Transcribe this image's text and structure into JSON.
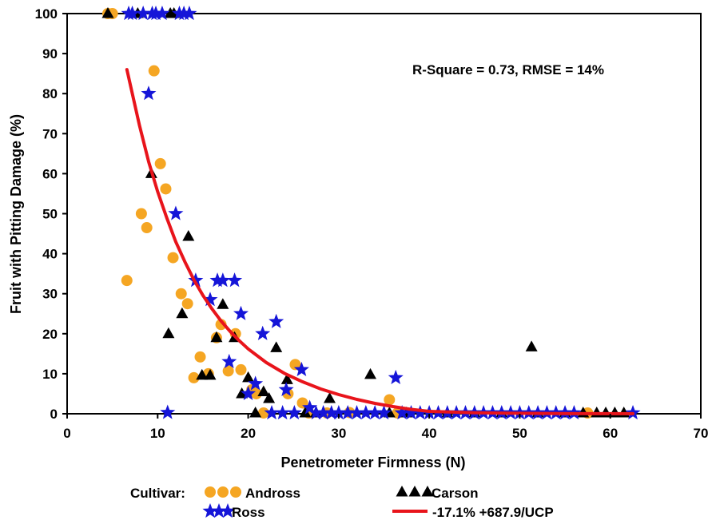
{
  "chart_data": {
    "type": "scatter",
    "xlabel": "Penetrometer Firmness (N)",
    "ylabel": "Fruit with Pitting Damage (%)",
    "xlim": [
      0,
      70
    ],
    "ylim": [
      0,
      100
    ],
    "xticks": [
      0,
      10,
      20,
      30,
      40,
      50,
      60,
      70
    ],
    "yticks": [
      0,
      10,
      20,
      30,
      40,
      50,
      60,
      70,
      80,
      90,
      100
    ],
    "grid": false,
    "annotation": "R-Square = 0.73, RMSE = 14%",
    "legend": {
      "title": "Cultivar:",
      "placement": "bottom",
      "entries": [
        {
          "label": "Andross",
          "glyph": "circle"
        },
        {
          "label": "Carson",
          "glyph": "triangle"
        },
        {
          "label": "Ross",
          "glyph": "star"
        },
        {
          "label": "-17.1% +687.9/UCP",
          "glyph": "line"
        }
      ]
    },
    "series": [
      {
        "name": "Andross",
        "marker": "circle",
        "color": "#F5A623",
        "points": [
          [
            4.5,
            100
          ],
          [
            5.0,
            100
          ],
          [
            6.6,
            33.3
          ],
          [
            8.2,
            50
          ],
          [
            8.8,
            46.5
          ],
          [
            9.6,
            85.7
          ],
          [
            10.3,
            62.5
          ],
          [
            10.9,
            56.2
          ],
          [
            11.7,
            39
          ],
          [
            12.6,
            30
          ],
          [
            13.3,
            27.5
          ],
          [
            14.0,
            9
          ],
          [
            14.7,
            14.2
          ],
          [
            15.6,
            10
          ],
          [
            16.5,
            19
          ],
          [
            17.0,
            22.3
          ],
          [
            17.8,
            10.7
          ],
          [
            18.6,
            20
          ],
          [
            19.2,
            11
          ],
          [
            20.4,
            6
          ],
          [
            20.9,
            5
          ],
          [
            21.7,
            0.2
          ],
          [
            24.4,
            5
          ],
          [
            25.2,
            12.3
          ],
          [
            26.0,
            2.7
          ],
          [
            26.7,
            0.2
          ],
          [
            28.7,
            0.2
          ],
          [
            31.2,
            0.3
          ],
          [
            35.6,
            3.5
          ],
          [
            36.5,
            0.2
          ],
          [
            57.5,
            0.2
          ]
        ]
      },
      {
        "name": "Carson",
        "marker": "triangle",
        "color": "#000000",
        "points": [
          [
            4.5,
            100
          ],
          [
            7.8,
            100
          ],
          [
            9.3,
            60
          ],
          [
            11.4,
            100
          ],
          [
            11.8,
            100
          ],
          [
            11.2,
            20
          ],
          [
            12.7,
            25
          ],
          [
            13.4,
            44.3
          ],
          [
            14.9,
            9.6
          ],
          [
            15.8,
            9.6
          ],
          [
            16.5,
            19
          ],
          [
            17.2,
            27.3
          ],
          [
            18.5,
            19
          ],
          [
            19.3,
            5
          ],
          [
            20.0,
            9
          ],
          [
            20.8,
            0.2
          ],
          [
            21.7,
            5.5
          ],
          [
            22.3,
            3.8
          ],
          [
            23.1,
            16.5
          ],
          [
            24.3,
            8.5
          ],
          [
            26.3,
            0.2
          ],
          [
            27.5,
            0.2
          ],
          [
            29.0,
            3.8
          ],
          [
            33.5,
            9.8
          ],
          [
            35.6,
            0.2
          ],
          [
            37.5,
            0.2
          ],
          [
            42,
            0.2
          ],
          [
            45,
            0.2
          ],
          [
            48,
            0.2
          ],
          [
            51.3,
            16.7
          ],
          [
            52,
            0.2
          ],
          [
            55,
            0.2
          ],
          [
            57,
            0.2
          ],
          [
            58.5,
            0.2
          ],
          [
            59.5,
            0.2
          ],
          [
            60.5,
            0.2
          ],
          [
            61.5,
            0.2
          ]
        ]
      },
      {
        "name": "Ross",
        "marker": "star",
        "color": "#1515D8",
        "points": [
          [
            6.8,
            100
          ],
          [
            7.2,
            100
          ],
          [
            8.4,
            100
          ],
          [
            9.4,
            100
          ],
          [
            9.8,
            100
          ],
          [
            10.5,
            100
          ],
          [
            12.4,
            100
          ],
          [
            12.9,
            100
          ],
          [
            13.5,
            100
          ],
          [
            9.0,
            80
          ],
          [
            11.1,
            0.3
          ],
          [
            12.0,
            50
          ],
          [
            14.2,
            33.3
          ],
          [
            15.8,
            28.5
          ],
          [
            16.6,
            33.3
          ],
          [
            17.2,
            33.3
          ],
          [
            17.9,
            13
          ],
          [
            18.5,
            33.3
          ],
          [
            19.2,
            25
          ],
          [
            20.0,
            5
          ],
          [
            20.8,
            7.5
          ],
          [
            21.6,
            20
          ],
          [
            22.6,
            0.2
          ],
          [
            23.1,
            23
          ],
          [
            23.8,
            0.2
          ],
          [
            24.2,
            6
          ],
          [
            25.1,
            0.2
          ],
          [
            25.9,
            11
          ],
          [
            26.8,
            1.5
          ],
          [
            27.5,
            0.2
          ],
          [
            28.3,
            0.2
          ],
          [
            29.2,
            0.2
          ],
          [
            30,
            0.2
          ],
          [
            31,
            0.2
          ],
          [
            32,
            0.2
          ],
          [
            33,
            0.2
          ],
          [
            34,
            0.2
          ],
          [
            35,
            0.2
          ],
          [
            36.3,
            9
          ],
          [
            37,
            0.2
          ],
          [
            38,
            0.2
          ],
          [
            39,
            0.2
          ],
          [
            40,
            0.2
          ],
          [
            41,
            0.2
          ],
          [
            42,
            0.2
          ],
          [
            43,
            0.2
          ],
          [
            44,
            0.2
          ],
          [
            45,
            0.2
          ],
          [
            46,
            0.2
          ],
          [
            47,
            0.2
          ],
          [
            48,
            0.2
          ],
          [
            49,
            0.2
          ],
          [
            50,
            0.2
          ],
          [
            51,
            0.2
          ],
          [
            52,
            0.2
          ],
          [
            53,
            0.2
          ],
          [
            54,
            0.2
          ],
          [
            55,
            0.2
          ],
          [
            56,
            0.2
          ],
          [
            62.5,
            0.2
          ]
        ]
      },
      {
        "name": "-17.1% +687.9/UCP",
        "marker": "line",
        "color": "#E8141B",
        "points": [
          [
            6.6,
            86
          ],
          [
            8,
            72
          ],
          [
            9,
            63
          ],
          [
            10,
            55.5
          ],
          [
            11,
            49
          ],
          [
            12,
            43
          ],
          [
            13,
            38
          ],
          [
            14,
            33.5
          ],
          [
            15,
            29.6
          ],
          [
            16,
            26.2
          ],
          [
            17,
            23.2
          ],
          [
            18,
            20.6
          ],
          [
            19,
            18.3
          ],
          [
            20,
            16.2
          ],
          [
            22,
            12.8
          ],
          [
            24,
            10.1
          ],
          [
            26,
            8
          ],
          [
            28,
            6.2
          ],
          [
            30,
            4.8
          ],
          [
            32,
            3.6
          ],
          [
            34,
            2.6
          ],
          [
            36,
            1.8
          ],
          [
            38,
            1.1
          ],
          [
            40,
            0.6
          ],
          [
            45,
            0.25
          ],
          [
            50,
            0.12
          ],
          [
            55,
            0.06
          ],
          [
            62.5,
            0.02
          ]
        ]
      }
    ]
  }
}
